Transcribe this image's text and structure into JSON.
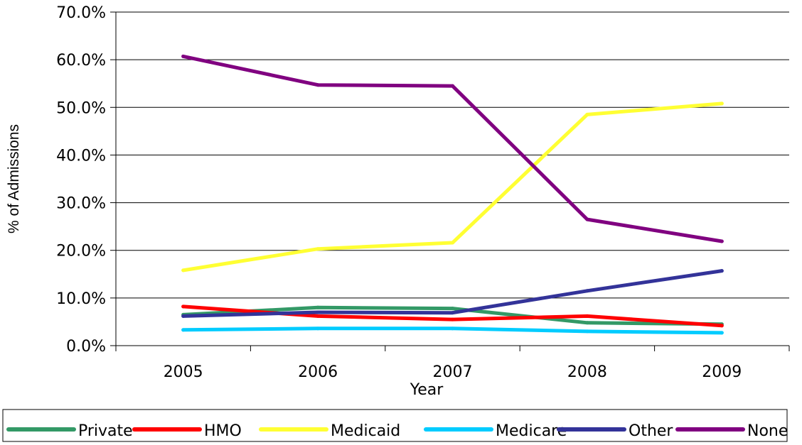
{
  "chart_data": {
    "type": "line",
    "title": "",
    "xlabel": "Year",
    "ylabel": "% of Admissions",
    "categories": [
      "2005",
      "2006",
      "2007",
      "2008",
      "2009"
    ],
    "ylim": [
      0,
      70
    ],
    "yticks": [
      "0.0%",
      "10.0%",
      "20.0%",
      "30.0%",
      "40.0%",
      "50.0%",
      "60.0%",
      "70.0%"
    ],
    "grid": true,
    "legend_position": "bottom",
    "series": [
      {
        "name": "Private",
        "color": "#339966",
        "values": [
          6.5,
          8.0,
          7.8,
          4.8,
          4.5
        ]
      },
      {
        "name": "HMO",
        "color": "#FF0000",
        "values": [
          8.2,
          6.2,
          5.5,
          6.2,
          4.2
        ]
      },
      {
        "name": "Medicaid",
        "color": "#FFFF33",
        "values": [
          15.8,
          20.3,
          21.6,
          48.5,
          50.8
        ]
      },
      {
        "name": "Medicare",
        "color": "#00CCFF",
        "values": [
          3.3,
          3.6,
          3.6,
          3.0,
          2.7
        ]
      },
      {
        "name": "Other",
        "color": "#333399",
        "values": [
          6.2,
          7.0,
          6.9,
          11.5,
          15.7
        ]
      },
      {
        "name": "None",
        "color": "#800080",
        "values": [
          60.7,
          54.7,
          54.5,
          26.5,
          21.9
        ]
      }
    ]
  }
}
